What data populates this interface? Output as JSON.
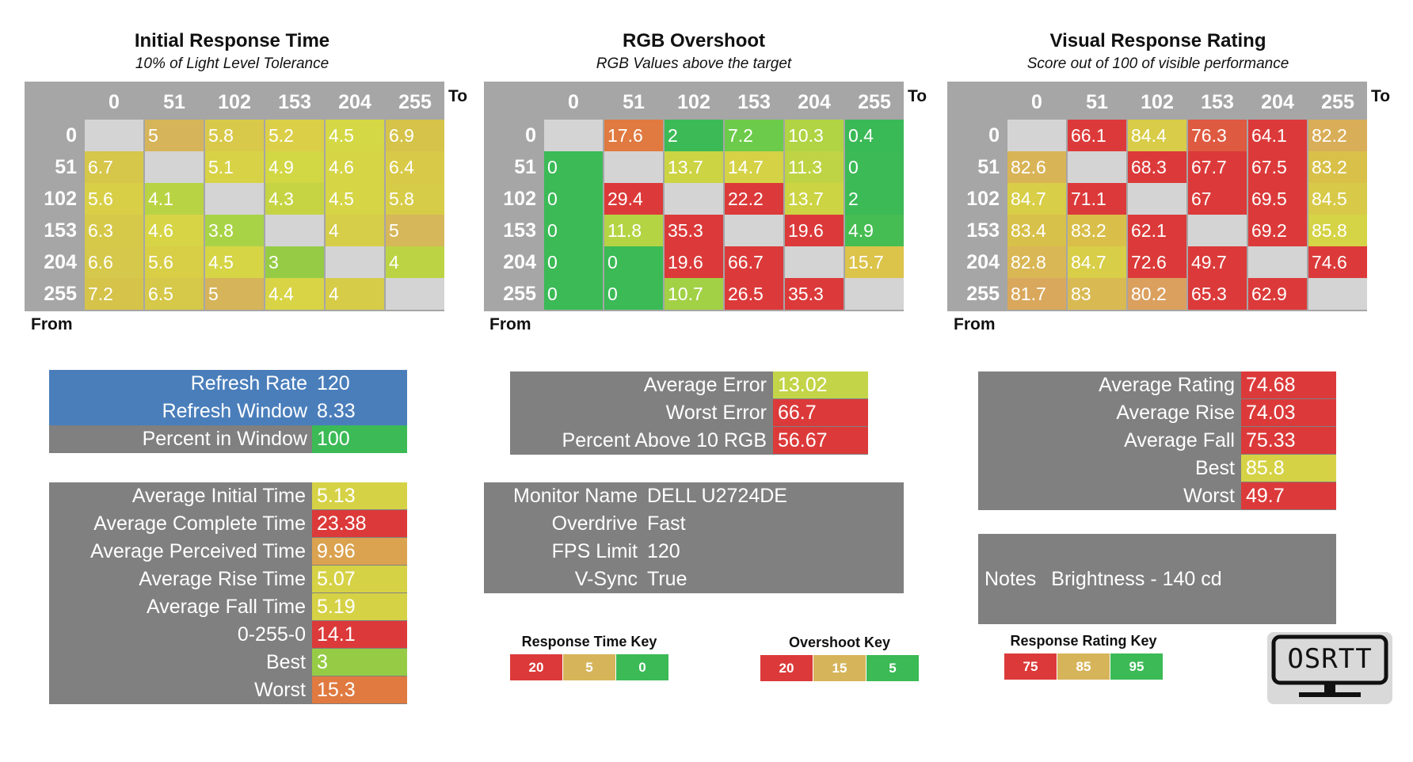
{
  "headers": [
    "0",
    "51",
    "102",
    "153",
    "204",
    "255"
  ],
  "axis": {
    "to": "To",
    "from": "From"
  },
  "charts": [
    {
      "title": "Initial Response Time",
      "subtitle": "10% of Light Level Tolerance"
    },
    {
      "title": "RGB Overshoot",
      "subtitle": "RGB Values above the target"
    },
    {
      "title": "Visual Response Rating",
      "subtitle": "Score out of 100 of visible performance"
    }
  ],
  "chart_data": [
    {
      "type": "heatmap",
      "title": "Initial Response Time",
      "subtitle": "10% of Light Level Tolerance",
      "xlabel": "To",
      "ylabel": "From",
      "x": [
        "0",
        "51",
        "102",
        "153",
        "204",
        "255"
      ],
      "y": [
        "0",
        "51",
        "102",
        "153",
        "204",
        "255"
      ],
      "values": [
        [
          null,
          "5",
          "5.8",
          "5.2",
          "4.5",
          "6.9"
        ],
        [
          "6.7",
          null,
          "5.1",
          "4.9",
          "4.6",
          "6.4"
        ],
        [
          "5.6",
          "4.1",
          null,
          "4.3",
          "4.5",
          "5.8"
        ],
        [
          "6.3",
          "4.6",
          "3.8",
          null,
          "4",
          "5"
        ],
        [
          "6.6",
          "5.6",
          "4.5",
          "3",
          null,
          "4"
        ],
        [
          "7.2",
          "6.5",
          "5",
          "4.4",
          "4",
          null
        ]
      ],
      "colors": [
        [
          "#d4d4d4",
          "#d6b45a",
          "#d9c94a",
          "#dccf48",
          "#d4d844",
          "#d5c34a"
        ],
        [
          "#d6c64a",
          "#d4d4d4",
          "#d8d246",
          "#d2d744",
          "#d6d546",
          "#d8ca48"
        ],
        [
          "#d8cf47",
          "#b8d444",
          "#d4d4d4",
          "#c6d444",
          "#d6d546",
          "#d7cc48"
        ],
        [
          "#d6c949",
          "#d7d546",
          "#a9d346",
          "#d4d4d4",
          "#d6cd48",
          "#d6b75a"
        ],
        [
          "#d5c84a",
          "#d8cf47",
          "#d6d546",
          "#96cc45",
          "#d4d4d4",
          "#bcd444"
        ],
        [
          "#d5c34a",
          "#d6c849",
          "#d6b45a",
          "#d8d446",
          "#d7cc48",
          "#d4d4d4"
        ]
      ]
    },
    {
      "type": "heatmap",
      "title": "RGB Overshoot",
      "subtitle": "RGB Values above the target",
      "xlabel": "To",
      "ylabel": "From",
      "x": [
        "0",
        "51",
        "102",
        "153",
        "204",
        "255"
      ],
      "y": [
        "0",
        "51",
        "102",
        "153",
        "204",
        "255"
      ],
      "values": [
        [
          null,
          "17.6",
          "2",
          "7.2",
          "10.3",
          "0.4"
        ],
        [
          "0",
          null,
          "13.7",
          "14.7",
          "11.3",
          "0"
        ],
        [
          "0",
          "29.4",
          null,
          "22.2",
          "13.7",
          "2"
        ],
        [
          "0",
          "11.8",
          "35.3",
          null,
          "19.6",
          "4.9"
        ],
        [
          "0",
          "0",
          "19.6",
          "66.7",
          null,
          "15.7"
        ],
        [
          "0",
          "0",
          "10.7",
          "26.5",
          "35.3",
          null
        ]
      ],
      "colors": [
        [
          "#d4d4d4",
          "#e07a40",
          "#3bba56",
          "#6ccb4a",
          "#b0d444",
          "#3ab957"
        ],
        [
          "#3bba56",
          "#d4d4d4",
          "#ccd444",
          "#d5d246",
          "#bfd444",
          "#3bba56"
        ],
        [
          "#3bba56",
          "#dc3a3a",
          "#d4d4d4",
          "#dc3a3a",
          "#ccd444",
          "#3bba56"
        ],
        [
          "#3bba56",
          "#b5d444",
          "#dc3a3a",
          "#d4d4d4",
          "#dc3a3a",
          "#46bd52"
        ],
        [
          "#3bba56",
          "#3bba56",
          "#dc3a3a",
          "#dc3a3a",
          "#d4d4d4",
          "#dcc34a"
        ],
        [
          "#3bba56",
          "#3bba56",
          "#a2d145",
          "#dc3a3a",
          "#dc3a3a",
          "#d4d4d4"
        ]
      ]
    },
    {
      "type": "heatmap",
      "title": "Visual Response Rating",
      "subtitle": "Score out of 100 of visible performance",
      "xlabel": "To",
      "ylabel": "From",
      "x": [
        "0",
        "51",
        "102",
        "153",
        "204",
        "255"
      ],
      "y": [
        "0",
        "51",
        "102",
        "153",
        "204",
        "255"
      ],
      "values": [
        [
          null,
          "66.1",
          "84.4",
          "76.3",
          "64.1",
          "82.2"
        ],
        [
          "82.6",
          null,
          "68.3",
          "67.7",
          "67.5",
          "83.2"
        ],
        [
          "84.7",
          "71.1",
          null,
          "67",
          "69.5",
          "84.5"
        ],
        [
          "83.4",
          "83.2",
          "62.1",
          null,
          "69.2",
          "85.8"
        ],
        [
          "82.8",
          "84.7",
          "72.6",
          "49.7",
          null,
          "74.6"
        ],
        [
          "81.7",
          "83",
          "80.2",
          "65.3",
          "62.9",
          null
        ]
      ],
      "colors": [
        [
          "#d4d4d4",
          "#dc3a3a",
          "#d8cc48",
          "#de5a40",
          "#dc3a3a",
          "#d9ae58"
        ],
        [
          "#d9b457",
          "#d4d4d4",
          "#dc3a3a",
          "#dc3a3a",
          "#dc3a3a",
          "#d9c149"
        ],
        [
          "#d8ce47",
          "#dc3a3a",
          "#d4d4d4",
          "#dc3a3a",
          "#dc3a3a",
          "#d8ca48"
        ],
        [
          "#d8c14a",
          "#d9bf4a",
          "#dc3a3a",
          "#d4d4d4",
          "#dc3a3a",
          "#d5d346"
        ],
        [
          "#d9b755",
          "#d8ce47",
          "#dc3a3a",
          "#dc3a3a",
          "#d4d4d4",
          "#dc3a3a"
        ],
        [
          "#d9a85c",
          "#d9ba52",
          "#dba05e",
          "#dc3a3a",
          "#dc3a3a",
          "#d4d4d4"
        ]
      ]
    }
  ],
  "refresh": [
    {
      "label": "Refresh Rate",
      "value": "120",
      "label_color": "#4a7ebb",
      "value_color": "#4a7ebb"
    },
    {
      "label": "Refresh Window",
      "value": "8.33",
      "label_color": "#4a7ebb",
      "value_color": "#4a7ebb"
    },
    {
      "label": "Percent in Window",
      "value": "100",
      "label_color": "#808080",
      "value_color": "#3bba56"
    }
  ],
  "times": [
    {
      "label": "Average Initial Time",
      "value": "5.13",
      "color": "#d6d246"
    },
    {
      "label": "Average Complete Time",
      "value": "23.38",
      "color": "#dc3a3a"
    },
    {
      "label": "Average Perceived Time",
      "value": "9.96",
      "color": "#dba24f"
    },
    {
      "label": "Average Rise Time",
      "value": "5.07",
      "color": "#d6d246"
    },
    {
      "label": "Average Fall Time",
      "value": "5.19",
      "color": "#d6d246"
    },
    {
      "label": "0-255-0",
      "value": "14.1",
      "color": "#dc3a3a"
    },
    {
      "label": "Best",
      "value": "3",
      "color": "#96cc45"
    },
    {
      "label": "Worst",
      "value": "15.3",
      "color": "#e07a40"
    }
  ],
  "errors": [
    {
      "label": "Average Error",
      "value": "13.02",
      "color": "#c3d448"
    },
    {
      "label": "Worst Error",
      "value": "66.7",
      "color": "#dc3a3a"
    },
    {
      "label": "Percent Above 10 RGB",
      "value": "56.67",
      "color": "#dc3a3a"
    }
  ],
  "monitor": [
    {
      "label": "Monitor Name",
      "value": "DELL U2724DE"
    },
    {
      "label": "Overdrive",
      "value": "Fast"
    },
    {
      "label": "FPS Limit",
      "value": "120"
    },
    {
      "label": "V-Sync",
      "value": "True"
    }
  ],
  "ratings": [
    {
      "label": "Average Rating",
      "value": "74.68",
      "color": "#dc3a3a"
    },
    {
      "label": "Average Rise",
      "value": "74.03",
      "color": "#dc3a3a"
    },
    {
      "label": "Average Fall",
      "value": "75.33",
      "color": "#dc3a3a"
    },
    {
      "label": "Best",
      "value": "85.8",
      "color": "#d6d246"
    },
    {
      "label": "Worst",
      "value": "49.7",
      "color": "#dc3a3a"
    }
  ],
  "notes": {
    "label": "Notes",
    "value": "Brightness - 140 cd"
  },
  "keys": [
    {
      "title": "Response Time Key",
      "items": [
        {
          "v": "20",
          "c": "#dc3a3a"
        },
        {
          "v": "5",
          "c": "#d6b45a"
        },
        {
          "v": "0",
          "c": "#3bba56"
        }
      ]
    },
    {
      "title": "Overshoot Key",
      "items": [
        {
          "v": "20",
          "c": "#dc3a3a"
        },
        {
          "v": "15",
          "c": "#d6b45a"
        },
        {
          "v": "5",
          "c": "#3bba56"
        }
      ]
    },
    {
      "title": "Response Rating Key",
      "items": [
        {
          "v": "75",
          "c": "#dc3a3a"
        },
        {
          "v": "85",
          "c": "#d6b45a"
        },
        {
          "v": "95",
          "c": "#3bba56"
        }
      ]
    }
  ],
  "logo": {
    "text": "OSRTT"
  }
}
